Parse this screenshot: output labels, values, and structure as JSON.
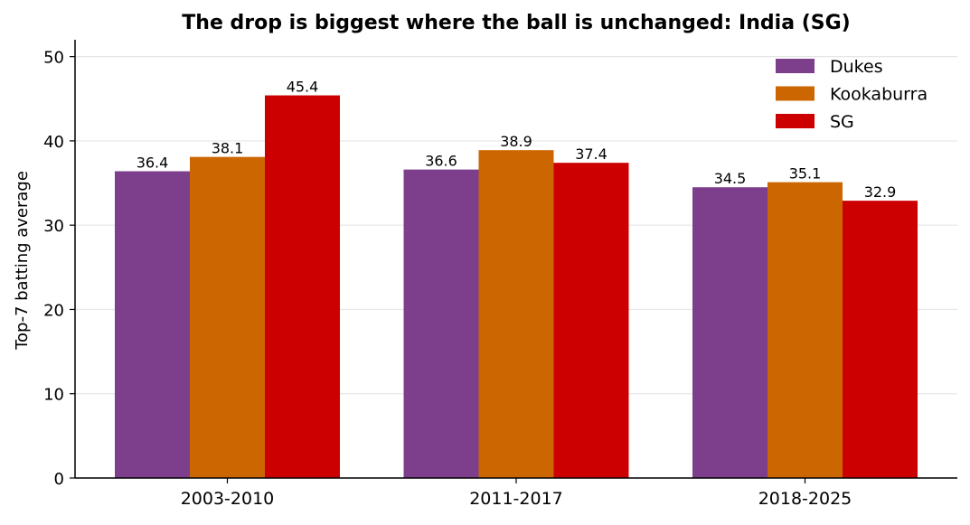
{
  "chart_data": {
    "type": "bar",
    "title": "The drop is biggest where the ball is unchanged: India (SG)",
    "xlabel": "",
    "ylabel": "Top-7 batting average",
    "categories": [
      "2003-2010",
      "2011-2017",
      "2018-2025"
    ],
    "series": [
      {
        "name": "Dukes",
        "values": [
          36.4,
          36.6,
          34.5
        ],
        "color": "#7d3f8c"
      },
      {
        "name": "Kookaburra",
        "values": [
          38.1,
          38.9,
          35.1
        ],
        "color": "#cc6600"
      },
      {
        "name": "SG",
        "values": [
          45.4,
          37.4,
          32.9
        ],
        "color": "#cc0000"
      }
    ],
    "ylim": [
      0,
      52
    ],
    "yticks": [
      0,
      10,
      20,
      30,
      40,
      50
    ],
    "grid": "horizontal",
    "legend_position": "top-right",
    "data_labels": true
  }
}
